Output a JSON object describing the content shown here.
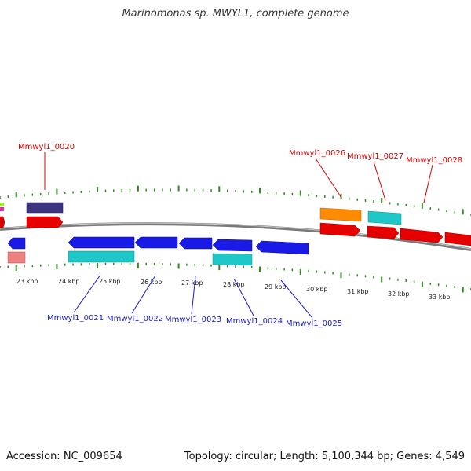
{
  "title": "Marinomonas sp. MWYL1, complete genome",
  "footer": {
    "accession": "Accession: NC_009654",
    "summary": "Topology: circular; Length: 5,100,344 bp; Genes: 4,549"
  },
  "colors": {
    "backbone": "#7a7a7a",
    "tick": "#2e8b1e",
    "forward_label": "#d40000",
    "reverse_label": "#1a1acc"
  },
  "scale_labels": [
    "23 kbp",
    "24 kbp",
    "25 kbp",
    "26 kbp",
    "27 kbp",
    "28 kbp",
    "29 kbp",
    "30 kbp",
    "31 kbp",
    "32 kbp",
    "33 kbp"
  ],
  "gene_labels": [
    {
      "id": "g20",
      "text": "Mmwyl1_0020",
      "strand": "forward"
    },
    {
      "id": "g26",
      "text": "Mmwyl1_0026",
      "strand": "forward"
    },
    {
      "id": "g27",
      "text": "Mmwyl1_0027",
      "strand": "forward"
    },
    {
      "id": "g28",
      "text": "Mmwyl1_0028",
      "strand": "forward"
    },
    {
      "id": "g21",
      "text": "Mmwyl1_0021",
      "strand": "reverse"
    },
    {
      "id": "g22",
      "text": "Mmwyl1_0022",
      "strand": "reverse"
    },
    {
      "id": "g23",
      "text": "Mmwyl1_0023",
      "strand": "reverse"
    },
    {
      "id": "g24",
      "text": "Mmwyl1_0024",
      "strand": "reverse"
    },
    {
      "id": "g25",
      "text": "Mmwyl1_0025",
      "strand": "reverse"
    }
  ]
}
